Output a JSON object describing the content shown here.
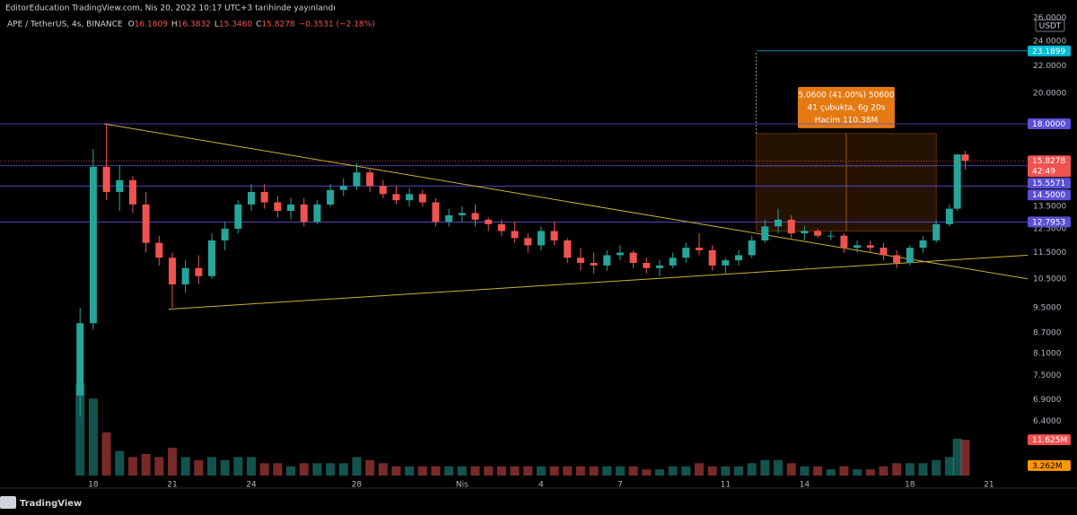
{
  "header": "EditorEducation TradingView.com, Nis 20, 2022 10:17 UTC+3 tarihinde yayınlandı",
  "footer": "TradingView",
  "chart_data": {
    "type": "candlestick",
    "legend": {
      "symbol": "APE / TetherUS, 4s, BINANCE",
      "items": [
        {
          "key": "O",
          "value": "16.1809"
        },
        {
          "key": "H",
          "value": "16.3832"
        },
        {
          "key": "L",
          "value": "15.3460"
        },
        {
          "key": "C",
          "value": "15.8278"
        }
      ],
      "change": "−0.3531 (−2.18%)"
    },
    "currency": "USDT",
    "log_scale": true,
    "ylim": [
      5.3,
      26.5
    ],
    "yticks": [
      {
        "value": 26,
        "label": "26.0000"
      },
      {
        "value": 24,
        "label": "24.0000"
      },
      {
        "value": 22,
        "label": "22.0000"
      },
      {
        "value": 20,
        "label": "20.0000"
      },
      {
        "value": 13.5,
        "label": "13.5000"
      },
      {
        "value": 12.5,
        "label": "12.5000"
      },
      {
        "value": 11.5,
        "label": "11.5000"
      },
      {
        "value": 10.5,
        "label": "10.5000"
      },
      {
        "value": 9.5,
        "label": "9.5000"
      },
      {
        "value": 8.7,
        "label": "8.7000"
      },
      {
        "value": 8.1,
        "label": "8.1000"
      },
      {
        "value": 7.5,
        "label": "7.5000"
      },
      {
        "value": 6.9,
        "label": "6.9000"
      },
      {
        "value": 6.4,
        "label": "6.4000"
      }
    ],
    "xlim": [
      14.46,
      53.47
    ],
    "xticks": [
      {
        "value": 18,
        "label": "18"
      },
      {
        "value": 21,
        "label": "21"
      },
      {
        "value": 24,
        "label": "24"
      },
      {
        "value": 28,
        "label": "28"
      },
      {
        "value": 32,
        "label": "Nis"
      },
      {
        "value": 35,
        "label": "4"
      },
      {
        "value": 38,
        "label": "7"
      },
      {
        "value": 42,
        "label": "11"
      },
      {
        "value": 45,
        "label": "14"
      },
      {
        "value": 49,
        "label": "18"
      },
      {
        "value": 52,
        "label": "21"
      }
    ],
    "vlim": [
      0,
      35
    ],
    "up_color": "#26a69a",
    "down_color": "#ef5350",
    "candles": [
      [
        17.5,
        7.0,
        9.5,
        6.5,
        9.0,
        30
      ],
      [
        18.0,
        9.0,
        16.5,
        8.8,
        15.5,
        25
      ],
      [
        18.5,
        15.5,
        18.0,
        13.8,
        14.2,
        14
      ],
      [
        19.0,
        14.2,
        15.6,
        13.3,
        14.8,
        8
      ],
      [
        19.5,
        14.8,
        15.0,
        13.2,
        13.6,
        6
      ],
      [
        20.0,
        13.6,
        14.2,
        11.5,
        11.9,
        7
      ],
      [
        20.5,
        11.9,
        12.2,
        11.0,
        11.3,
        6
      ],
      [
        21.0,
        11.3,
        11.5,
        9.5,
        10.3,
        9
      ],
      [
        21.5,
        10.3,
        11.2,
        10.0,
        10.9,
        6
      ],
      [
        22.0,
        10.9,
        11.4,
        10.3,
        10.6,
        5
      ],
      [
        22.5,
        10.6,
        12.3,
        10.5,
        12.0,
        6
      ],
      [
        23.0,
        12.0,
        12.8,
        11.6,
        12.5,
        5
      ],
      [
        23.5,
        12.5,
        13.8,
        12.3,
        13.6,
        6
      ],
      [
        24.0,
        13.6,
        14.6,
        13.3,
        14.2,
        6
      ],
      [
        24.5,
        14.2,
        14.6,
        13.4,
        13.7,
        4
      ],
      [
        25.0,
        13.7,
        14.0,
        13.0,
        13.3,
        4
      ],
      [
        25.5,
        13.3,
        13.9,
        12.9,
        13.6,
        3
      ],
      [
        26.0,
        13.6,
        13.9,
        12.6,
        12.8,
        4
      ],
      [
        26.5,
        12.8,
        13.8,
        12.7,
        13.6,
        4
      ],
      [
        27.0,
        13.6,
        14.6,
        13.5,
        14.3,
        4
      ],
      [
        27.5,
        14.3,
        14.9,
        14.0,
        14.5,
        4
      ],
      [
        28.0,
        14.5,
        15.7,
        14.3,
        15.2,
        6
      ],
      [
        28.5,
        15.2,
        15.4,
        14.2,
        14.5,
        5
      ],
      [
        29.0,
        14.5,
        14.8,
        13.9,
        14.1,
        4
      ],
      [
        29.5,
        14.1,
        14.5,
        13.6,
        13.8,
        3
      ],
      [
        30.0,
        13.8,
        14.4,
        13.5,
        14.1,
        3
      ],
      [
        30.5,
        14.1,
        14.3,
        13.5,
        13.7,
        3
      ],
      [
        31.0,
        13.7,
        13.9,
        12.6,
        12.8,
        3
      ],
      [
        31.5,
        12.8,
        13.4,
        12.6,
        13.1,
        3
      ],
      [
        32.0,
        13.1,
        13.5,
        12.8,
        13.2,
        3
      ],
      [
        32.5,
        13.2,
        13.6,
        12.6,
        12.9,
        3
      ],
      [
        33.0,
        12.9,
        13.0,
        12.4,
        12.7,
        3
      ],
      [
        33.5,
        12.7,
        12.9,
        12.2,
        12.4,
        3
      ],
      [
        34.0,
        12.4,
        12.8,
        11.9,
        12.1,
        3
      ],
      [
        34.5,
        12.1,
        12.3,
        11.5,
        11.8,
        3
      ],
      [
        35.0,
        11.8,
        12.6,
        11.6,
        12.4,
        3
      ],
      [
        35.5,
        12.4,
        12.8,
        11.8,
        12.0,
        3
      ],
      [
        36.0,
        12.0,
        12.1,
        11.1,
        11.3,
        3
      ],
      [
        36.5,
        11.3,
        11.7,
        10.8,
        11.1,
        3
      ],
      [
        37.0,
        11.1,
        11.5,
        10.7,
        11.0,
        3
      ],
      [
        37.5,
        11.0,
        11.6,
        10.8,
        11.4,
        3
      ],
      [
        38.0,
        11.4,
        11.8,
        11.2,
        11.5,
        3
      ],
      [
        38.5,
        11.5,
        11.6,
        10.9,
        11.1,
        3
      ],
      [
        39.0,
        11.1,
        11.3,
        10.7,
        10.9,
        2
      ],
      [
        39.5,
        10.9,
        11.2,
        10.6,
        11.0,
        2
      ],
      [
        40.0,
        11.0,
        11.5,
        10.9,
        11.3,
        3
      ],
      [
        40.5,
        11.3,
        11.9,
        11.1,
        11.7,
        3
      ],
      [
        41.0,
        11.7,
        12.3,
        11.4,
        11.6,
        4
      ],
      [
        41.5,
        11.6,
        11.8,
        10.8,
        11.0,
        3
      ],
      [
        42.0,
        11.0,
        11.3,
        10.7,
        11.2,
        3
      ],
      [
        42.5,
        11.2,
        11.6,
        11.0,
        11.4,
        3
      ],
      [
        43.0,
        11.4,
        12.2,
        11.3,
        12.0,
        4
      ],
      [
        43.5,
        12.0,
        12.9,
        11.9,
        12.6,
        5
      ],
      [
        44.0,
        12.6,
        13.4,
        12.3,
        12.9,
        5
      ],
      [
        44.5,
        12.9,
        13.1,
        12.1,
        12.3,
        4
      ],
      [
        45.0,
        12.3,
        12.6,
        12.0,
        12.4,
        3
      ],
      [
        45.5,
        12.4,
        12.5,
        12.1,
        12.2,
        3
      ],
      [
        46.0,
        12.2,
        12.4,
        12.0,
        12.2,
        2
      ],
      [
        46.5,
        12.2,
        12.3,
        11.5,
        11.7,
        3
      ],
      [
        47.0,
        11.7,
        12.0,
        11.5,
        11.8,
        2
      ],
      [
        47.5,
        11.8,
        12.0,
        11.5,
        11.7,
        2
      ],
      [
        48.0,
        11.7,
        11.9,
        11.2,
        11.4,
        3
      ],
      [
        48.5,
        11.4,
        11.6,
        10.9,
        11.1,
        4
      ],
      [
        49.0,
        11.1,
        11.8,
        11.0,
        11.7,
        4
      ],
      [
        49.5,
        11.7,
        12.2,
        11.5,
        12.0,
        4
      ],
      [
        50.0,
        12.0,
        12.9,
        11.9,
        12.7,
        5
      ],
      [
        50.5,
        12.7,
        13.6,
        12.6,
        13.4,
        6
      ],
      [
        50.8,
        13.4,
        16.2,
        13.3,
        16.18,
        12
      ],
      [
        51.1,
        16.1809,
        16.3832,
        15.346,
        15.8278,
        11.625
      ]
    ],
    "trendlines": [
      {
        "color": "#c9b337",
        "points": [
          [
            18.4,
            18.0
          ],
          [
            53.47,
            10.5
          ]
        ]
      },
      {
        "color": "#c9b337",
        "points": [
          [
            20.86,
            9.45
          ],
          [
            53.47,
            11.4
          ]
        ]
      }
    ],
    "levels": [
      {
        "price": {
          "value": 18,
          "label": "18.0000"
        },
        "color": "#5b4fd6"
      },
      {
        "price": 15.5571,
        "color": "#5b4fd6"
      },
      {
        "price": {
          "value": 14.5,
          "label": "14.5000"
        },
        "color": "#5b4fd6"
      },
      {
        "price": 12.7953,
        "color": "#5b4fd6"
      }
    ],
    "target": {
      "price": 23.1899,
      "color": "#00bcd4"
    },
    "countdown": "42:49",
    "measure": {
      "x": [
        43.17,
        50.0
      ],
      "price": [
        12.4,
        17.4
      ],
      "lines": [
        "5.0600 (41.00%) 50600",
        "41 çubukta, 6g 20s",
        "Hacim 110.38M"
      ]
    },
    "volume_badge": {
      "value": 11.625,
      "label": "11.625M"
    },
    "volume_ma_badge": {
      "value": 3.262,
      "label": "3.262M"
    }
  }
}
